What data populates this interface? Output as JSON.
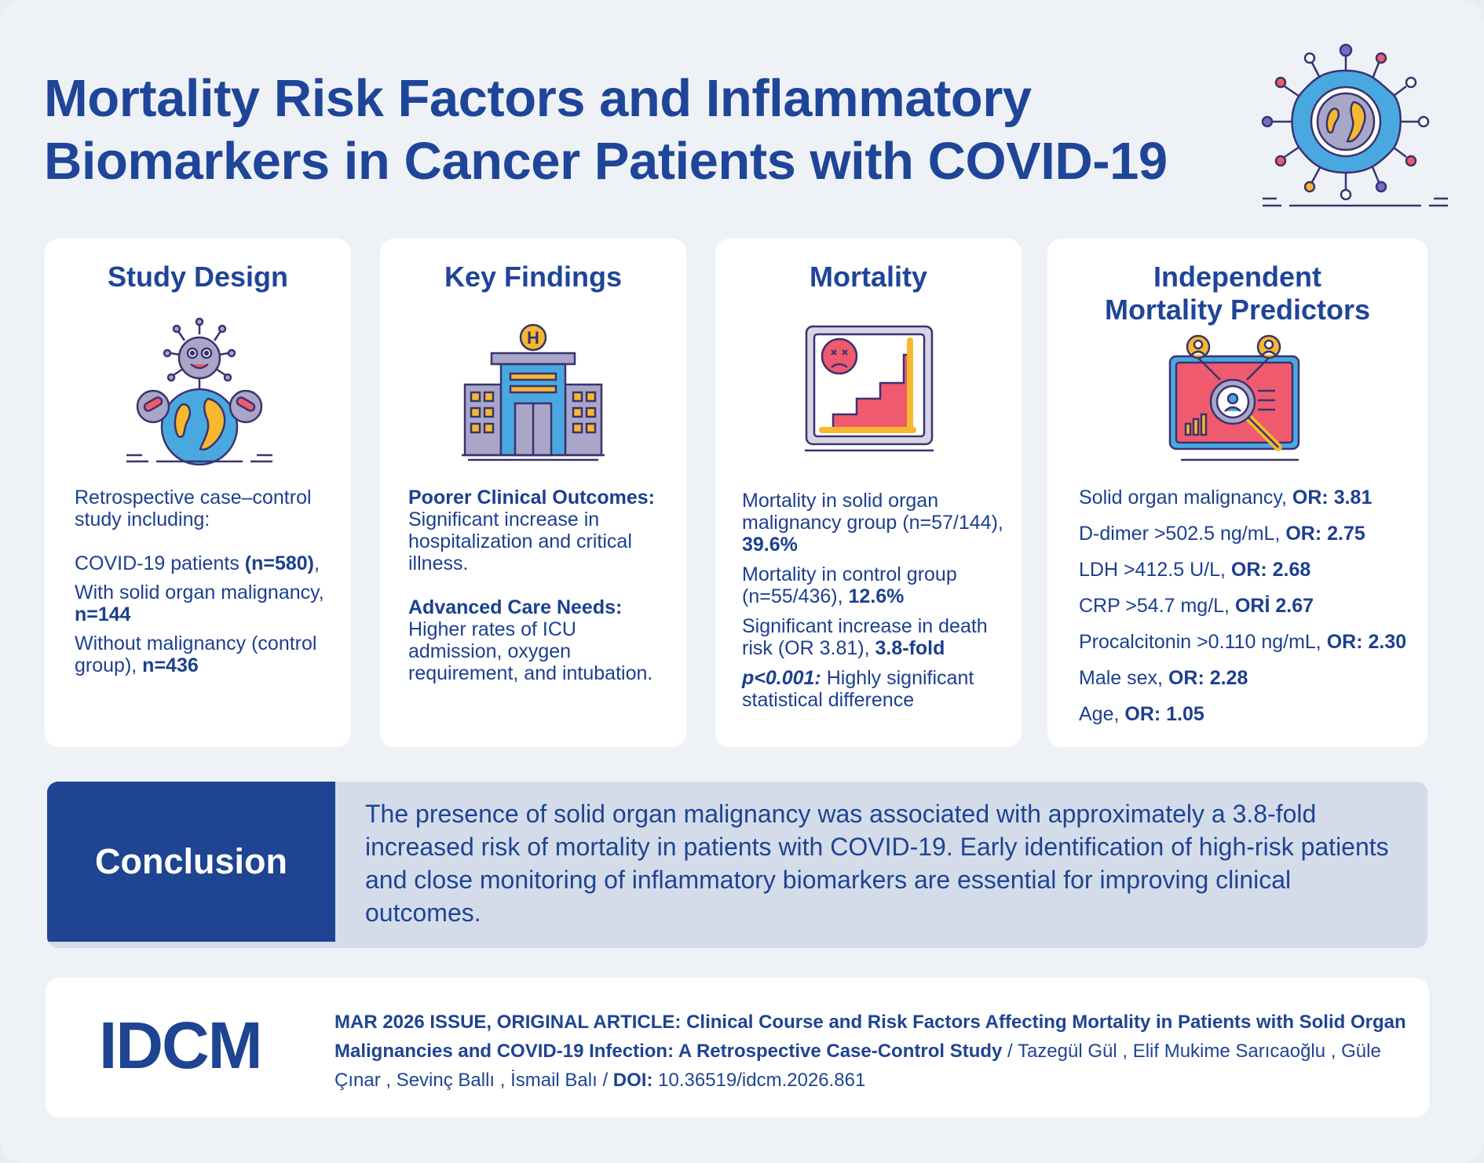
{
  "header": {
    "title_line1": "Mortality Risk Factors and Inflammatory",
    "title_line2": "Biomarkers in Cancer Patients with COVID-19"
  },
  "colors": {
    "primary": "#1f4599",
    "accent_red": "#ef5a6f",
    "accent_yellow": "#f5b82e",
    "accent_blue": "#4aa8e0"
  },
  "study_design": {
    "title": "Study Design",
    "intro": "Retrospective case–control study including:",
    "patients_label": "COVID-19 patients ",
    "patients_value": "(n=580)",
    "patients_suffix": ",",
    "solid_label": "With solid organ malignancy, ",
    "solid_value": "n=144",
    "control_label": "Without malignancy (control group), ",
    "control_value": "n=436"
  },
  "key_findings": {
    "title": "Key Findings",
    "f1_head": "Poorer Clinical Outcomes:",
    "f1_text": "Significant increase in hospitalization and critical illness.",
    "f2_head": "Advanced Care Needs:",
    "f2_text": "Higher rates of ICU admission, oxygen requirement, and intubation.",
    "hospital_letter": "H"
  },
  "mortality": {
    "title": "Mortality",
    "m1_text": "Mortality in solid organ malignancy group (n=57/144), ",
    "m1_value": "39.6%",
    "m2_text": "Mortality in control group (n=55/436), ",
    "m2_value": "12.6%",
    "m3_text": "Significant increase in death risk (OR 3.81), ",
    "m3_value": "3.8-fold",
    "m4_value": "p<0.001:",
    "m4_text": " Highly significant statistical difference"
  },
  "predictors": {
    "title_line1": "Independent",
    "title_line2": "Mortality Predictors",
    "items": [
      {
        "label": "Solid organ malignancy, ",
        "value": "OR: 3.81"
      },
      {
        "label": "D-dimer >502.5 ng/mL, ",
        "value": "OR: 2.75"
      },
      {
        "label": "LDH >412.5 U/L, ",
        "value": "OR: 2.68"
      },
      {
        "label": "CRP >54.7 mg/L, ",
        "value": "ORİ 2.67"
      },
      {
        "label": "Procalcitonin >0.110 ng/mL, ",
        "value": "OR: 2.30"
      },
      {
        "label": "Male sex, ",
        "value": "OR: 2.28"
      },
      {
        "label": "Age, ",
        "value": "OR: 1.05"
      }
    ]
  },
  "conclusion": {
    "label": "Conclusion",
    "text": "The presence of solid organ malignancy was associated with approximately a 3.8-fold increased risk of mortality in patients with COVID-19. Early identification of high-risk patients and close monitoring of inflammatory biomarkers are essential for improving clinical outcomes."
  },
  "footer": {
    "brand": "IDCM",
    "issue": "MAR 2026 ISSUE, ORIGINAL ARTICLE: Clinical Course and Risk Factors Affecting Mortality in Patients with Solid Organ Malignancies and COVID-19 Infection: A Retrospective Case-Control Study",
    "authors": " / Tazegül Gül , Elif Mukime Sarıcaoğlu , Güle Çınar , Sevinç Ballı , İsmail Balı / ",
    "doi_label": "DOI:",
    "doi_value": " 10.36519/idcm.2026.861"
  }
}
